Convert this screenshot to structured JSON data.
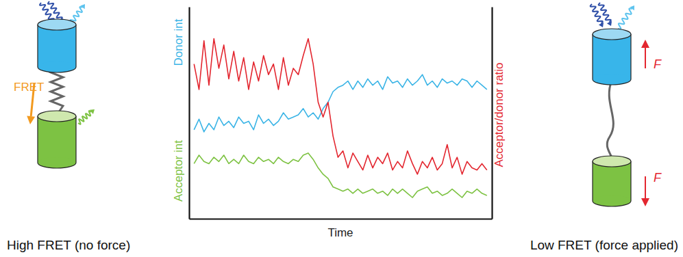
{
  "chart_data": {
    "type": "line",
    "x_label": "Time",
    "x": [
      0,
      1,
      2,
      3,
      4,
      5,
      6,
      7,
      8,
      9,
      10,
      11,
      12,
      13,
      14,
      15,
      16,
      17,
      18,
      19,
      20,
      21,
      22,
      23,
      24,
      25,
      26,
      27,
      28,
      29,
      30,
      31,
      32,
      33,
      34,
      35,
      36,
      37,
      38,
      39,
      40,
      41,
      42,
      43,
      44,
      45,
      46,
      47,
      48,
      49,
      50,
      51,
      52,
      53,
      54,
      55,
      56,
      57,
      58,
      59
    ],
    "xlim": [
      -1,
      60
    ],
    "xticks": [],
    "ylim": [
      0,
      100
    ],
    "yticks": [],
    "y2lim": [
      0,
      100
    ],
    "y2ticks": [],
    "tick_labels": false,
    "series": [
      {
        "name": "Donor int",
        "color": "#3ab4e6",
        "values": [
          42,
          47,
          41,
          45,
          42,
          48,
          44,
          46,
          43,
          48,
          45,
          46,
          42,
          49,
          45,
          47,
          44,
          46,
          50,
          47,
          48,
          49,
          52,
          48,
          50,
          47,
          52,
          55,
          60,
          62,
          63,
          65,
          61,
          65,
          62,
          66,
          63,
          65,
          61,
          67,
          64,
          65,
          62,
          66,
          63,
          65,
          68,
          63,
          65,
          62,
          66,
          64,
          65,
          63,
          66,
          65,
          62,
          65,
          63,
          61
        ]
      },
      {
        "name": "Acceptor int",
        "color": "#7dc242",
        "values": [
          26,
          30,
          27,
          26,
          29,
          27,
          30,
          26,
          28,
          26,
          30,
          27,
          26,
          29,
          27,
          28,
          26,
          29,
          27,
          26,
          28,
          27,
          30,
          31,
          28,
          24,
          21,
          19,
          15,
          14,
          13,
          14,
          12,
          14,
          12,
          13,
          14,
          12,
          13,
          11,
          14,
          12,
          14,
          12,
          10,
          13,
          14,
          15,
          12,
          13,
          11,
          12,
          14,
          12,
          10,
          13,
          12,
          14,
          12,
          11
        ]
      },
      {
        "name": "Acceptor/donor ratio",
        "color": "#e3262f",
        "axis": "y2",
        "values": [
          73,
          61,
          84,
          63,
          85,
          71,
          82,
          66,
          79,
          65,
          76,
          61,
          74,
          65,
          77,
          68,
          73,
          61,
          76,
          63,
          71,
          68,
          77,
          85,
          73,
          55,
          48,
          55,
          39,
          29,
          32,
          24,
          31,
          27,
          23,
          30,
          24,
          29,
          26,
          31,
          23,
          27,
          24,
          32,
          26,
          21,
          27,
          24,
          29,
          23,
          26,
          35,
          24,
          29,
          21,
          27,
          24,
          23,
          26,
          23
        ]
      }
    ]
  },
  "diagram": {
    "left_caption": "High FRET (no force)",
    "right_caption": "Low FRET (force applied)",
    "fret_label": "FRET",
    "force_labels": [
      "F",
      "F"
    ]
  }
}
